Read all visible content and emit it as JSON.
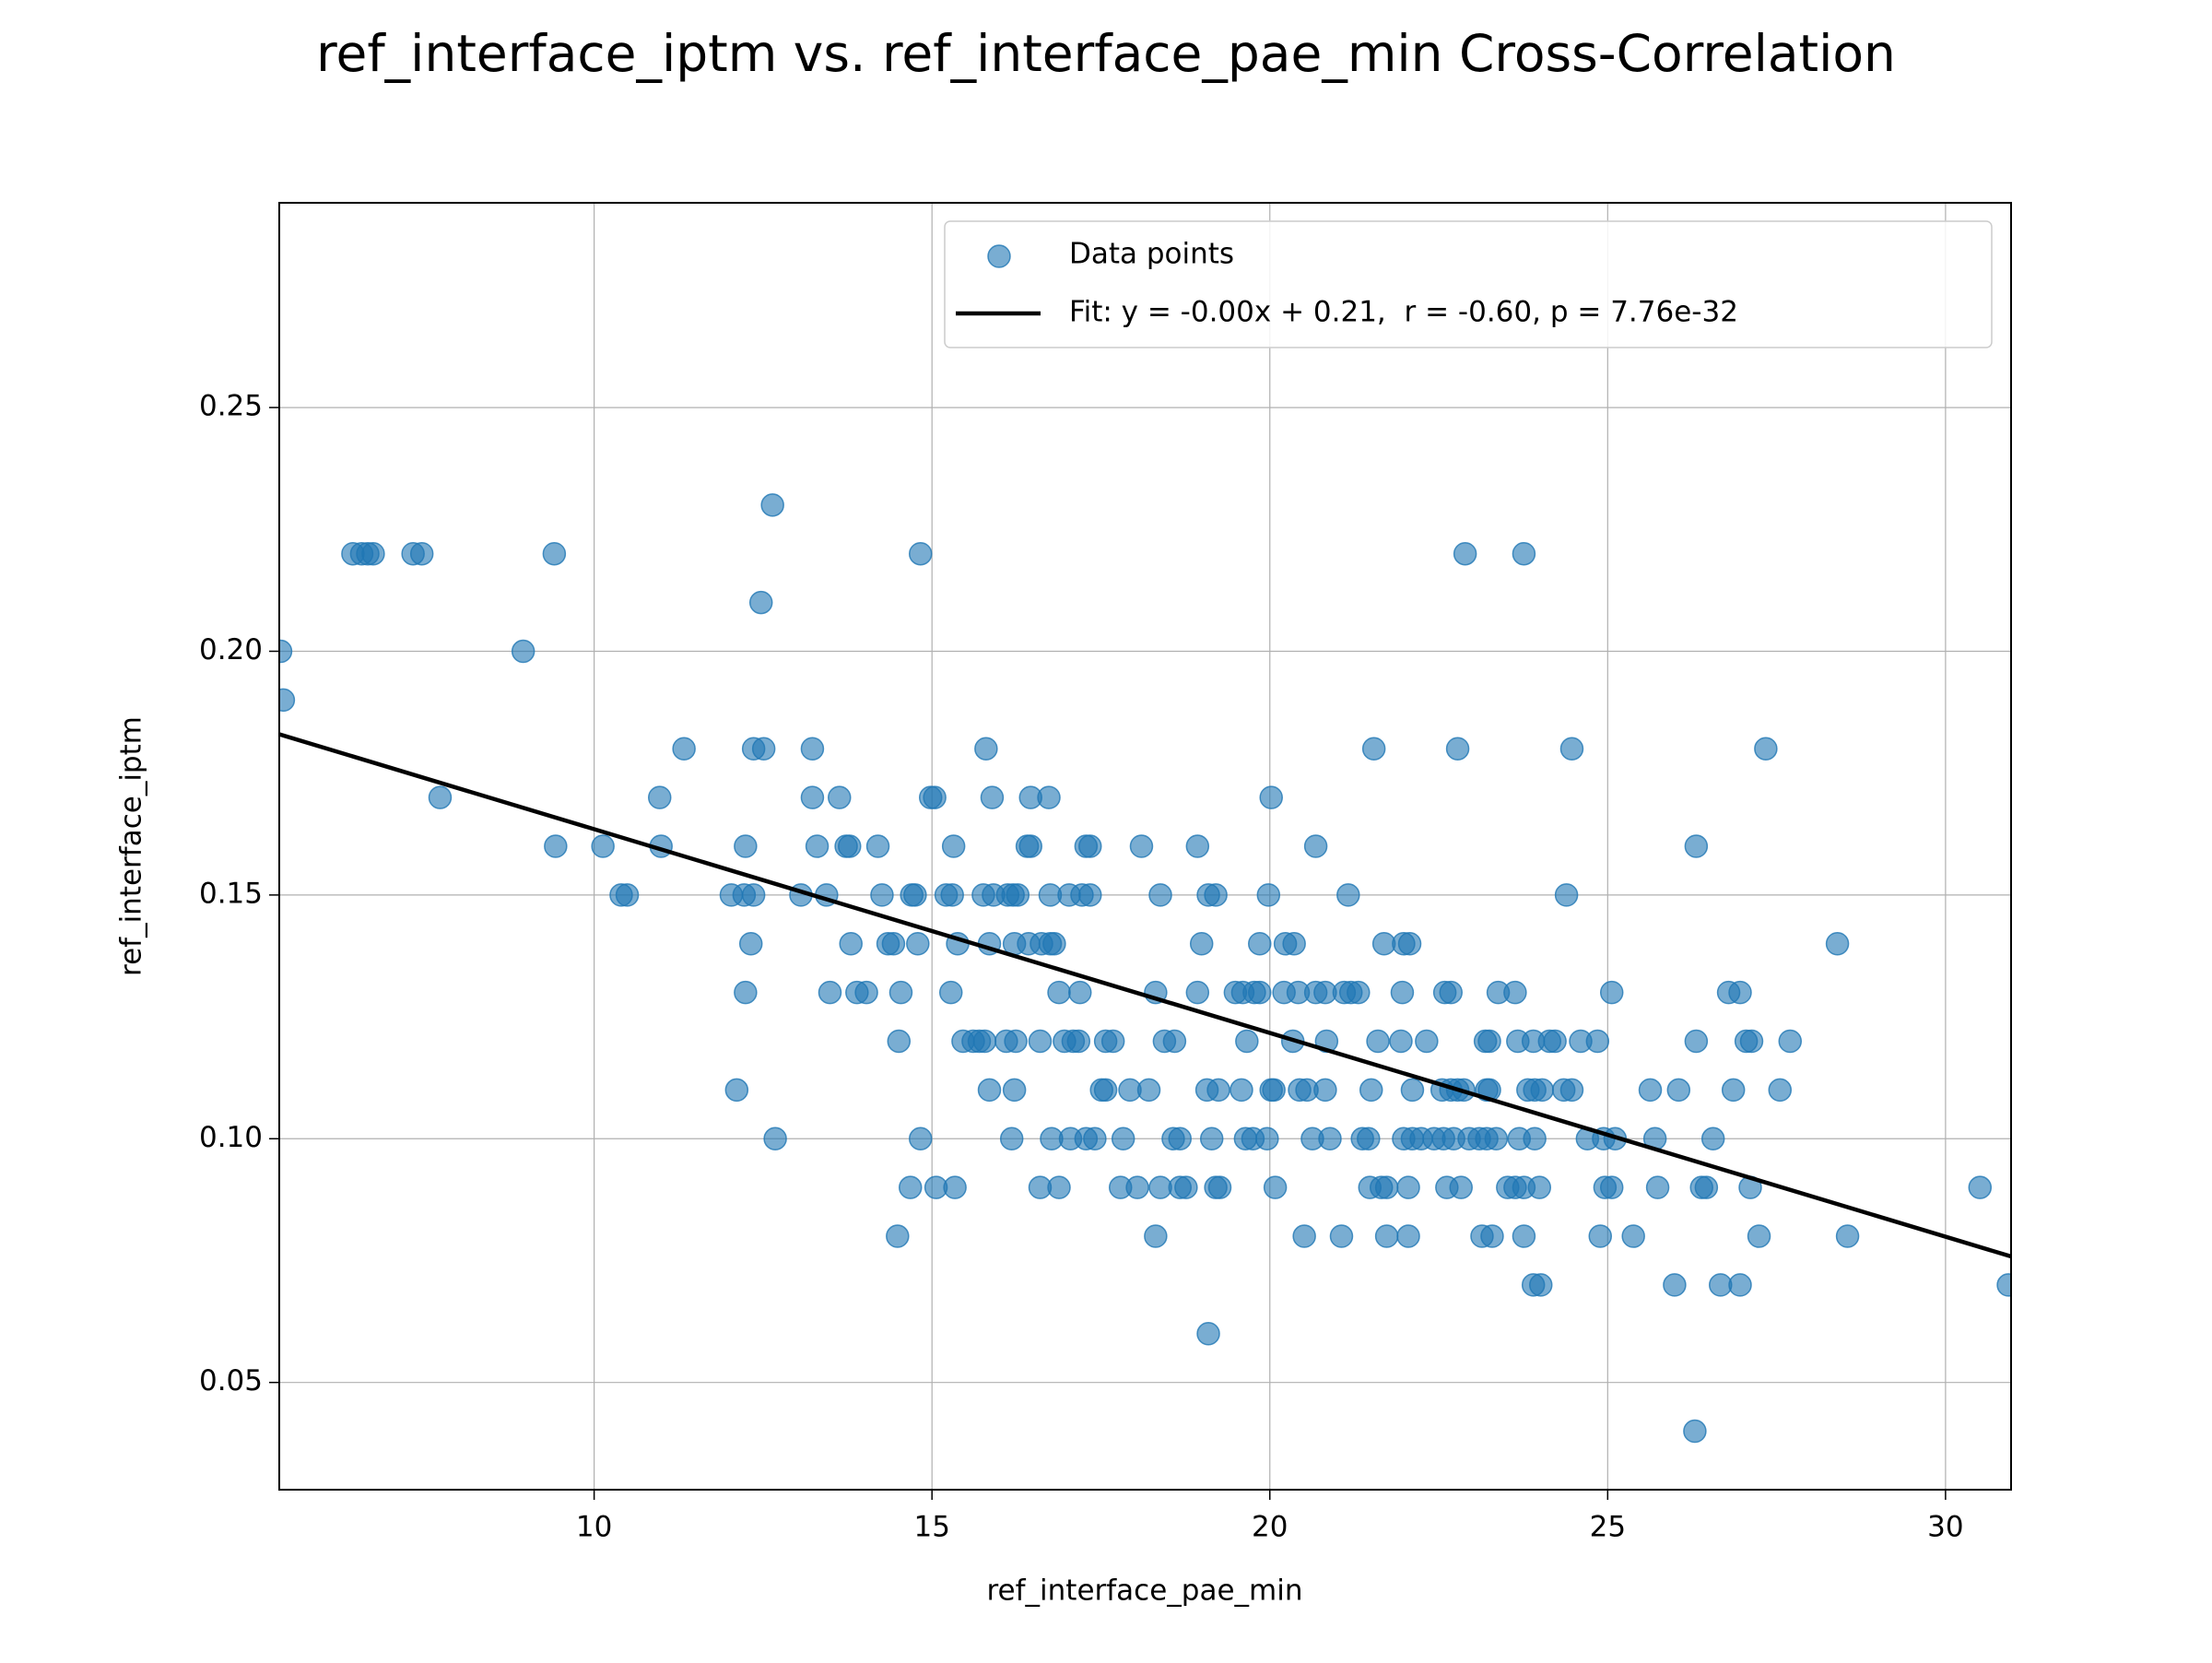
{
  "chart_data": {
    "type": "scatter",
    "title": "ref_interface_iptm vs. ref_interface_pae_min Cross-Correlation",
    "x_label": "ref_interface_pae_min",
    "y_label": "ref_interface_iptm",
    "xlim": [
      5.34,
      30.97
    ],
    "ylim": [
      0.028,
      0.292
    ],
    "xticks": [
      10,
      15,
      20,
      25,
      30
    ],
    "yticks": [
      0.05,
      {
        "value": 0.1,
        "label": "0.10"
      },
      0.15,
      {
        "value": 0.2,
        "label": "0.20"
      },
      0.25
    ],
    "grid": true,
    "legend_position": "upper-right",
    "x": [
      12.64,
      6.43,
      6.56,
      6.65,
      6.73,
      7.32,
      7.45,
      9.41,
      14.83,
      22.89,
      23.76,
      12.47,
      5.36,
      8.95,
      5.4,
      11.33,
      12.36,
      12.51,
      13.23,
      15.8,
      21.54,
      22.78,
      24.47,
      27.34,
      7.72,
      10.97,
      13.23,
      13.63,
      14.98,
      15.04,
      15.89,
      16.46,
      16.73,
      20.02,
      9.43,
      10.13,
      10.99,
      12.24,
      13.3,
      13.73,
      13.78,
      14.2,
      15.32,
      16.41,
      16.46,
      17.28,
      17.34,
      18.1,
      18.93,
      20.68,
      26.31,
      10.4,
      10.49,
      12.03,
      12.22,
      12.36,
      13.06,
      13.44,
      14.26,
      14.7,
      14.75,
      15.21,
      15.3,
      15.76,
      15.91,
      16.12,
      16.2,
      16.27,
      16.75,
      17.03,
      17.22,
      17.34,
      18.38,
      19.09,
      19.2,
      19.98,
      21.16,
      24.39,
      12.32,
      13.8,
      14.35,
      14.43,
      14.79,
      15.38,
      15.85,
      16.22,
      16.43,
      16.62,
      16.75,
      16.81,
      18.99,
      19.85,
      20.23,
      20.36,
      21.69,
      21.98,
      22.07,
      28.4,
      12.24,
      13.49,
      13.89,
      14.03,
      14.54,
      15.28,
      16.88,
      17.19,
      18.31,
      18.93,
      19.49,
      19.6,
      19.77,
      19.85,
      20.21,
      20.42,
      20.68,
      20.82,
      21.1,
      21.2,
      21.31,
      21.96,
      22.59,
      22.68,
      23.38,
      23.63,
      25.06,
      26.79,
      26.96,
      14.51,
      15.46,
      15.61,
      15.7,
      15.78,
      16.1,
      16.24,
      16.6,
      16.96,
      17.09,
      17.17,
      17.57,
      17.68,
      18.44,
      18.59,
      19.66,
      20.34,
      20.84,
      21.6,
      21.94,
      22.32,
      23.19,
      23.25,
      23.67,
      23.9,
      24.14,
      24.22,
      24.6,
      24.85,
      26.31,
      27.05,
      27.13,
      27.7,
      12.11,
      15.85,
      16.22,
      17.51,
      17.57,
      17.93,
      18.21,
      19.07,
      19.24,
      19.58,
      20.02,
      20.06,
      20.44,
      20.55,
      20.82,
      21.5,
      22.11,
      22.55,
      22.68,
      22.78,
      22.87,
      23.21,
      23.25,
      23.82,
      23.92,
      24.03,
      24.35,
      24.47,
      25.63,
      26.05,
      26.86,
      27.55,
      12.68,
      14.83,
      16.18,
      16.77,
      17.05,
      17.28,
      17.41,
      17.83,
      18.57,
      18.67,
      19.14,
      19.64,
      19.75,
      19.96,
      20.63,
      20.89,
      21.37,
      21.46,
      21.98,
      22.11,
      22.24,
      22.43,
      22.57,
      22.72,
      22.95,
      23.1,
      23.21,
      23.35,
      23.69,
      23.92,
      24.7,
      24.94,
      25.11,
      25.7,
      26.56,
      14.68,
      15.06,
      15.34,
      16.6,
      16.88,
      17.79,
      18.04,
      18.38,
      18.67,
      18.76,
      19.2,
      19.26,
      20.08,
      21.48,
      21.65,
      21.73,
      22.05,
      22.62,
      22.83,
      23.52,
      23.63,
      23.76,
      23.99,
      24.96,
      25.06,
      25.74,
      26.39,
      26.46,
      27.11,
      30.51,
      14.49,
      18.31,
      20.51,
      21.06,
      21.73,
      22.05,
      23.14,
      23.29,
      23.76,
      24.89,
      25.38,
      27.24,
      28.55,
      23.9,
      24.01,
      25.99,
      26.67,
      26.96,
      30.93,
      19.09,
      26.29
    ],
    "series": [
      {
        "name": "Data points",
        "color": "#1f77b4",
        "values": [
          0.23,
          0.22,
          0.22,
          0.22,
          0.22,
          0.22,
          0.22,
          0.22,
          0.22,
          0.22,
          0.22,
          0.21,
          0.2,
          0.2,
          0.19,
          0.18,
          0.18,
          0.18,
          0.18,
          0.18,
          0.18,
          0.18,
          0.18,
          0.18,
          0.17,
          0.17,
          0.17,
          0.17,
          0.17,
          0.17,
          0.17,
          0.17,
          0.17,
          0.17,
          0.16,
          0.16,
          0.16,
          0.16,
          0.16,
          0.16,
          0.16,
          0.16,
          0.16,
          0.16,
          0.16,
          0.16,
          0.16,
          0.16,
          0.16,
          0.16,
          0.16,
          0.15,
          0.15,
          0.15,
          0.15,
          0.15,
          0.15,
          0.15,
          0.15,
          0.15,
          0.15,
          0.15,
          0.15,
          0.15,
          0.15,
          0.15,
          0.15,
          0.15,
          0.15,
          0.15,
          0.15,
          0.15,
          0.15,
          0.15,
          0.15,
          0.15,
          0.15,
          0.15,
          0.14,
          0.14,
          0.14,
          0.14,
          0.14,
          0.14,
          0.14,
          0.14,
          0.14,
          0.14,
          0.14,
          0.14,
          0.14,
          0.14,
          0.14,
          0.14,
          0.14,
          0.14,
          0.14,
          0.14,
          0.13,
          0.13,
          0.13,
          0.13,
          0.13,
          0.13,
          0.13,
          0.13,
          0.13,
          0.13,
          0.13,
          0.13,
          0.13,
          0.13,
          0.13,
          0.13,
          0.13,
          0.13,
          0.13,
          0.13,
          0.13,
          0.13,
          0.13,
          0.13,
          0.13,
          0.13,
          0.13,
          0.13,
          0.13,
          0.12,
          0.12,
          0.12,
          0.12,
          0.12,
          0.12,
          0.12,
          0.12,
          0.12,
          0.12,
          0.12,
          0.12,
          0.12,
          0.12,
          0.12,
          0.12,
          0.12,
          0.12,
          0.12,
          0.12,
          0.12,
          0.12,
          0.12,
          0.12,
          0.12,
          0.12,
          0.12,
          0.12,
          0.12,
          0.12,
          0.12,
          0.12,
          0.12,
          0.11,
          0.11,
          0.11,
          0.11,
          0.11,
          0.11,
          0.11,
          0.11,
          0.11,
          0.11,
          0.11,
          0.11,
          0.11,
          0.11,
          0.11,
          0.11,
          0.11,
          0.11,
          0.11,
          0.11,
          0.11,
          0.11,
          0.11,
          0.11,
          0.11,
          0.11,
          0.11,
          0.11,
          0.11,
          0.11,
          0.11,
          0.11,
          0.1,
          0.1,
          0.1,
          0.1,
          0.1,
          0.1,
          0.1,
          0.1,
          0.1,
          0.1,
          0.1,
          0.1,
          0.1,
          0.1,
          0.1,
          0.1,
          0.1,
          0.1,
          0.1,
          0.1,
          0.1,
          0.1,
          0.1,
          0.1,
          0.1,
          0.1,
          0.1,
          0.1,
          0.1,
          0.1,
          0.1,
          0.1,
          0.1,
          0.1,
          0.1,
          0.09,
          0.09,
          0.09,
          0.09,
          0.09,
          0.09,
          0.09,
          0.09,
          0.09,
          0.09,
          0.09,
          0.09,
          0.09,
          0.09,
          0.09,
          0.09,
          0.09,
          0.09,
          0.09,
          0.09,
          0.09,
          0.09,
          0.09,
          0.09,
          0.09,
          0.09,
          0.09,
          0.09,
          0.09,
          0.09,
          0.08,
          0.08,
          0.08,
          0.08,
          0.08,
          0.08,
          0.08,
          0.08,
          0.08,
          0.08,
          0.08,
          0.08,
          0.08,
          0.07,
          0.07,
          0.07,
          0.07,
          0.07,
          0.07,
          0.06,
          0.04
        ]
      }
    ],
    "fit": {
      "name": "Fit: y = -0.00x + 0.21,  r = -0.60, p = 7.76e-32",
      "color": "#000000",
      "slope": -0.00418,
      "intercept": 0.2053
    }
  }
}
